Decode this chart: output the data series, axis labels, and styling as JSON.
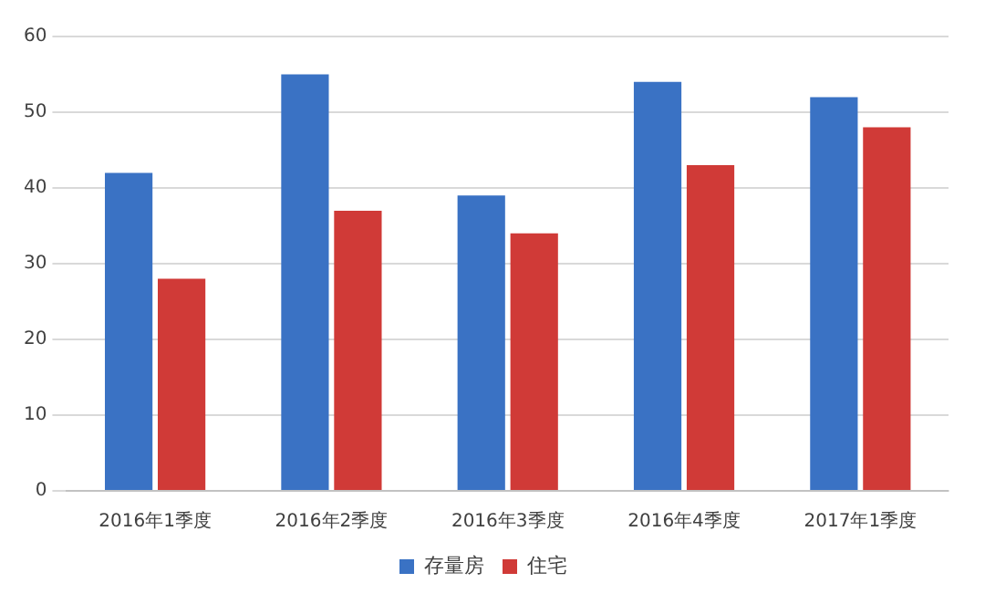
{
  "chart_data": {
    "type": "bar",
    "categories": [
      "2016年1季度",
      "2016年2季度",
      "2016年3季度",
      "2016年4季度",
      "2017年1季度"
    ],
    "series": [
      {
        "name": "存量房",
        "color": "#3a72c4",
        "values": [
          42,
          55,
          39,
          54,
          52
        ]
      },
      {
        "name": "住宅",
        "color": "#d03a37",
        "values": [
          28,
          37,
          34,
          43,
          48
        ]
      }
    ],
    "ylim": [
      0,
      60
    ],
    "yticks": [
      0,
      10,
      20,
      30,
      40,
      50,
      60
    ],
    "grid": "y",
    "legend": "bottom"
  }
}
